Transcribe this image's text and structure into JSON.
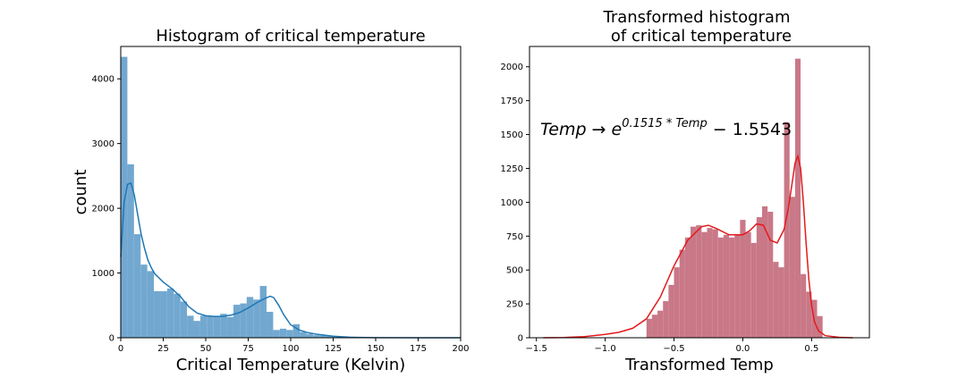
{
  "chart_data": [
    {
      "type": "bar",
      "title": "Histogram of critical temperature",
      "xlabel": "Critical Temperature (Kelvin)",
      "ylabel": "count",
      "xlim": [
        0,
        200
      ],
      "ylim": [
        0,
        4500
      ],
      "xticks": [
        "0",
        "25",
        "50",
        "75",
        "100",
        "125",
        "150",
        "175",
        "200"
      ],
      "yticks": [
        "0",
        "1000",
        "2000",
        "3000",
        "4000"
      ],
      "bar_color": "#72a8d0",
      "kde_color": "#1f77b4",
      "bin_edges": [
        0,
        3.9,
        7.8,
        11.7,
        15.6,
        19.5,
        23.4,
        27.3,
        31.2,
        35.1,
        39.0,
        42.9,
        46.8,
        50.7,
        54.6,
        58.5,
        62.4,
        66.3,
        70.2,
        74.1,
        78.0,
        81.9,
        85.8,
        89.7,
        93.6,
        97.5,
        101.4,
        105.3,
        109.2,
        113.1,
        117.0,
        120.9,
        124.8,
        128.7,
        132.6,
        136.5
      ],
      "counts": [
        4340,
        2680,
        1600,
        1130,
        1030,
        720,
        720,
        760,
        680,
        560,
        340,
        260,
        340,
        330,
        330,
        370,
        320,
        510,
        530,
        630,
        590,
        800,
        400,
        120,
        140,
        120,
        210,
        90,
        60,
        40,
        35,
        30,
        20,
        20,
        10
      ],
      "kde": {
        "x": [
          0,
          2,
          4,
          6,
          8,
          10,
          12,
          14,
          16,
          18,
          20,
          25,
          30,
          35,
          40,
          45,
          50,
          55,
          60,
          65,
          70,
          75,
          80,
          85,
          88,
          90,
          93,
          96,
          100,
          105,
          110,
          115,
          120,
          125,
          130,
          135,
          140,
          150,
          175,
          200
        ],
        "y": [
          1250,
          2100,
          2370,
          2390,
          2200,
          1900,
          1600,
          1380,
          1200,
          1080,
          990,
          860,
          760,
          640,
          480,
          380,
          340,
          330,
          330,
          350,
          390,
          460,
          540,
          610,
          640,
          620,
          500,
          350,
          200,
          120,
          80,
          55,
          40,
          25,
          15,
          8,
          5,
          2,
          0,
          0
        ]
      }
    },
    {
      "type": "bar",
      "title_lines": [
        "Transformed histogram",
        "of critical temperature"
      ],
      "xlabel": "Transformed Temp",
      "ylabel": "",
      "xlim": [
        -1.55,
        0.92
      ],
      "ylim": [
        0,
        2150
      ],
      "xticks": [
        "−1.5",
        "−1.0",
        "−0.5",
        "0.0",
        "0.5"
      ],
      "yticks": [
        "0",
        "250",
        "500",
        "750",
        "1000",
        "1250",
        "1500",
        "1750",
        "2000"
      ],
      "annotation": {
        "base": "Temp → e",
        "superscript": "0.1515 * Temp",
        "tail": " − 1.5543"
      },
      "bar_color": "#c97887",
      "kde_color": "#e41a1c",
      "bin_edges": [
        -0.7,
        -0.66,
        -0.62,
        -0.58,
        -0.54,
        -0.5,
        -0.46,
        -0.42,
        -0.38,
        -0.34,
        -0.3,
        -0.26,
        -0.22,
        -0.18,
        -0.14,
        -0.1,
        -0.06,
        -0.02,
        0.02,
        0.06,
        0.1,
        0.14,
        0.18,
        0.22,
        0.26,
        0.3,
        0.34,
        0.38,
        0.42,
        0.46,
        0.5,
        0.54,
        0.58
      ],
      "counts": [
        140,
        170,
        200,
        270,
        390,
        520,
        650,
        740,
        820,
        830,
        780,
        810,
        800,
        740,
        760,
        740,
        760,
        870,
        780,
        700,
        890,
        970,
        930,
        560,
        520,
        1590,
        1040,
        2060,
        470,
        340,
        280,
        160
      ],
      "kde": {
        "x": [
          -1.45,
          -1.3,
          -1.15,
          -1.0,
          -0.9,
          -0.8,
          -0.7,
          -0.6,
          -0.5,
          -0.4,
          -0.3,
          -0.25,
          -0.2,
          -0.1,
          -0.05,
          0.0,
          0.05,
          0.1,
          0.15,
          0.2,
          0.25,
          0.3,
          0.33,
          0.36,
          0.38,
          0.4,
          0.42,
          0.44,
          0.46,
          0.48,
          0.5,
          0.52,
          0.55,
          0.6,
          0.7,
          0.8
        ],
        "y": [
          0,
          2,
          8,
          25,
          40,
          70,
          140,
          300,
          530,
          720,
          820,
          830,
          810,
          760,
          760,
          760,
          790,
          840,
          830,
          720,
          700,
          800,
          950,
          1150,
          1290,
          1340,
          1250,
          1000,
          700,
          430,
          240,
          120,
          50,
          15,
          3,
          0
        ]
      }
    }
  ]
}
